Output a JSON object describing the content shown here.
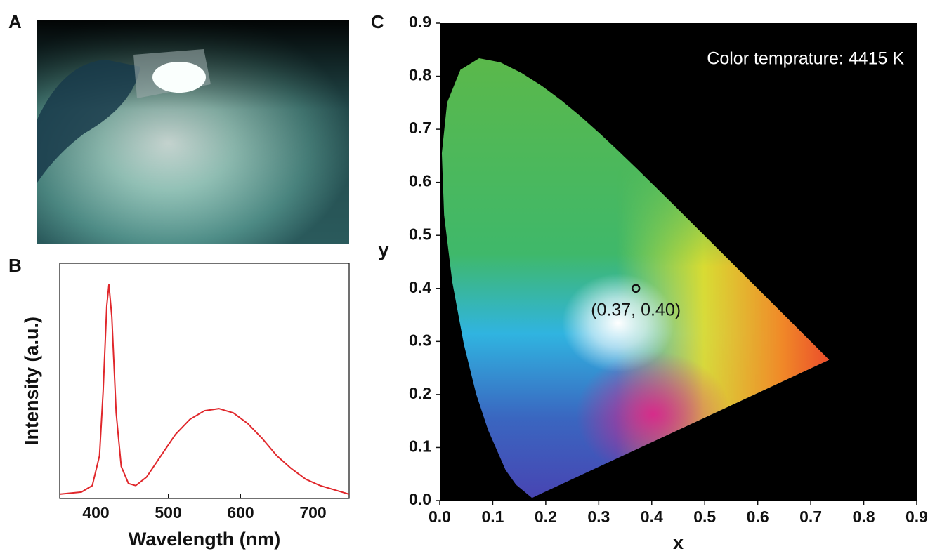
{
  "panels": {
    "a": "A",
    "b": "B",
    "c": "C"
  },
  "chart_data": [
    {
      "type": "line",
      "xlabel": "Wavelength (nm)",
      "ylabel": "Intensity (a.u.)",
      "x": [
        350,
        380,
        395,
        405,
        410,
        415,
        418,
        422,
        428,
        435,
        445,
        455,
        470,
        490,
        510,
        530,
        550,
        570,
        590,
        610,
        630,
        650,
        670,
        690,
        710,
        730,
        750
      ],
      "series": [
        {
          "color": "#e0272b",
          "values": [
            0.02,
            0.03,
            0.06,
            0.2,
            0.5,
            0.9,
            1.0,
            0.85,
            0.4,
            0.15,
            0.07,
            0.06,
            0.1,
            0.2,
            0.3,
            0.37,
            0.41,
            0.42,
            0.4,
            0.35,
            0.28,
            0.2,
            0.14,
            0.09,
            0.06,
            0.04,
            0.02
          ]
        }
      ],
      "xlim": [
        350,
        750
      ],
      "xticks": [
        400,
        500,
        600,
        700
      ],
      "ylim": [
        0,
        1.1
      ]
    },
    {
      "type": "scatter",
      "xlabel": "x",
      "ylabel": "y",
      "annotation": "Color temprature: 4415 K",
      "x": [
        0.37
      ],
      "values": [
        0.4
      ],
      "value_labels": [
        "(0.37, 0.40)"
      ],
      "color": "#ffffff",
      "xlim": [
        0,
        0.9
      ],
      "ylim": [
        0,
        0.9
      ],
      "xticks": [
        {
          "value": 0,
          "label": "0.0"
        },
        0.1,
        0.2,
        0.3,
        0.4,
        0.5,
        0.6,
        0.7,
        0.8,
        0.9
      ],
      "yticks": [
        {
          "value": 0,
          "label": "0.0"
        },
        0.1,
        0.2,
        0.3,
        0.4,
        0.5,
        0.6,
        0.7,
        0.8,
        0.9
      ]
    }
  ]
}
